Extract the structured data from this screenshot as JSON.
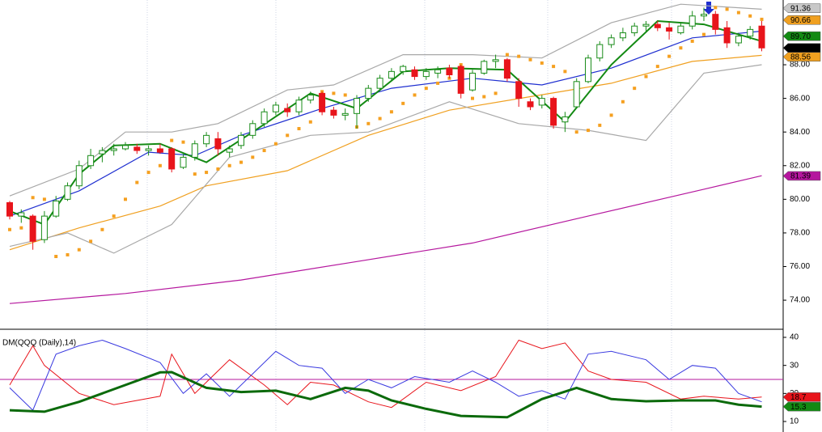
{
  "chart_data": [
    {
      "type": "candlestick",
      "open": [
        79.8,
        79.0,
        79.0,
        77.6,
        79.0,
        80.0,
        80.8,
        82.0,
        82.7,
        82.9,
        83.0,
        83.1,
        82.9,
        83.0,
        83.0,
        81.9,
        82.5,
        83.3,
        83.6,
        82.8,
        83.2,
        83.8,
        84.5,
        85.2,
        85.4,
        85.2,
        85.9,
        86.3,
        85.3,
        85.0,
        85.1,
        86.0,
        86.6,
        87.2,
        87.6,
        87.7,
        87.3,
        87.5,
        87.8,
        87.9,
        86.5,
        87.5,
        88.2,
        88.3,
        87.0,
        85.8,
        85.6,
        86.0,
        84.6,
        85.5,
        87.0,
        88.4,
        89.2,
        89.6,
        89.9,
        90.3,
        90.4,
        90.2,
        89.9,
        90.3,
        90.9,
        91.0,
        90.2,
        89.3,
        89.7,
        90.3
      ],
      "high": [
        79.9,
        79.4,
        79.1,
        79.3,
        80.2,
        81.0,
        82.3,
        83.0,
        83.1,
        83.3,
        83.4,
        83.3,
        83.2,
        83.3,
        83.1,
        82.7,
        83.5,
        84.0,
        84.0,
        83.2,
        84.0,
        84.7,
        85.4,
        85.8,
        85.7,
        86.1,
        86.4,
        86.4,
        85.5,
        85.4,
        86.2,
        86.8,
        87.4,
        87.8,
        88.0,
        87.9,
        87.8,
        87.9,
        88.0,
        88.0,
        87.7,
        88.3,
        88.6,
        88.4,
        87.2,
        86.0,
        86.2,
        86.1,
        85.2,
        87.2,
        88.6,
        89.4,
        89.8,
        90.2,
        90.5,
        90.6,
        90.6,
        90.5,
        90.5,
        91.2,
        91.4,
        91.2,
        90.6,
        89.9,
        90.3,
        90.6
      ],
      "low": [
        78.8,
        78.6,
        77.0,
        77.4,
        78.9,
        79.9,
        80.6,
        81.8,
        82.2,
        82.6,
        82.9,
        82.7,
        82.6,
        82.7,
        81.6,
        81.8,
        82.3,
        83.1,
        82.6,
        82.5,
        83.0,
        83.6,
        84.3,
        85.0,
        84.9,
        85.0,
        85.7,
        85.0,
        84.8,
        84.7,
        84.2,
        85.8,
        86.5,
        87.0,
        87.4,
        87.1,
        87.1,
        87.2,
        87.2,
        86.0,
        86.4,
        87.4,
        87.8,
        87.0,
        85.5,
        85.3,
        85.4,
        84.2,
        84.0,
        85.4,
        86.9,
        88.2,
        89.0,
        89.4,
        89.7,
        90.0,
        90.0,
        89.5,
        89.8,
        90.1,
        90.6,
        89.8,
        89.0,
        89.1,
        89.5,
        88.8
      ],
      "close": [
        79.0,
        79.2,
        77.5,
        79.0,
        79.9,
        80.8,
        82.0,
        82.6,
        82.9,
        83.0,
        83.2,
        82.9,
        83.0,
        82.8,
        81.8,
        82.5,
        83.3,
        83.8,
        83.0,
        83.0,
        83.8,
        84.5,
        85.2,
        85.6,
        85.2,
        85.9,
        86.2,
        85.2,
        85.0,
        85.1,
        86.0,
        86.6,
        87.2,
        87.6,
        87.9,
        87.3,
        87.6,
        87.7,
        87.4,
        86.3,
        87.5,
        88.2,
        88.3,
        87.2,
        86.0,
        85.5,
        86.0,
        84.4,
        84.9,
        87.0,
        88.4,
        89.2,
        89.6,
        89.9,
        90.3,
        90.4,
        90.2,
        90.0,
        90.3,
        90.9,
        91.0,
        90.1,
        89.3,
        89.7,
        90.1,
        89.0
      ],
      "sar": [
        78.2,
        78.3,
        80.1,
        80.0,
        76.6,
        76.7,
        77.0,
        77.5,
        78.2,
        79.0,
        80.0,
        81.0,
        81.6,
        82.0,
        83.5,
        83.4,
        81.5,
        81.6,
        81.8,
        82.0,
        82.2,
        82.5,
        82.9,
        83.3,
        83.8,
        84.2,
        84.6,
        86.4,
        86.3,
        86.2,
        84.3,
        84.5,
        84.8,
        85.2,
        85.7,
        86.2,
        86.6,
        86.9,
        87.2,
        88.0,
        86.0,
        86.1,
        86.3,
        88.6,
        88.5,
        88.3,
        88.1,
        87.9,
        87.6,
        84.0,
        84.1,
        84.4,
        85.0,
        85.8,
        86.6,
        87.3,
        87.9,
        88.5,
        89.0,
        89.4,
        89.8,
        91.4,
        91.3,
        91.1,
        90.9,
        90.7
      ],
      "up_color": "#1a8c1a",
      "down_color": "#e8141b",
      "sar_color": "#f5a020",
      "lines": [
        {
          "color": "#b5179e",
          "x": [
            0,
            10,
            20,
            30,
            40,
            50,
            60,
            65
          ],
          "values": [
            73.8,
            74.4,
            75.2,
            76.3,
            77.4,
            79.0,
            80.6,
            81.4
          ]
        },
        {
          "color": "#f0a020",
          "x": [
            0,
            6,
            13,
            17,
            24,
            31,
            38,
            45,
            52,
            59,
            65
          ],
          "values": [
            77.0,
            78.3,
            79.6,
            80.8,
            81.7,
            83.8,
            85.3,
            86.1,
            86.9,
            88.2,
            88.56
          ]
        },
        {
          "color": "#1f2fd0",
          "x": [
            0,
            6,
            12,
            16,
            20,
            27,
            33,
            40,
            46,
            52,
            59,
            65
          ],
          "values": [
            79.0,
            80.5,
            82.8,
            82.6,
            83.8,
            85.4,
            86.6,
            87.2,
            86.8,
            87.8,
            89.6,
            90.0
          ]
        },
        {
          "color": "#a8a8a8",
          "x": [
            0,
            6,
            10,
            14,
            18,
            24,
            28,
            34,
            40,
            46,
            52,
            58,
            65
          ],
          "values": [
            80.2,
            81.8,
            84.0,
            84.0,
            84.5,
            86.5,
            86.8,
            88.6,
            88.6,
            88.4,
            90.5,
            91.6,
            91.3
          ]
        },
        {
          "color": "#a8a8a8",
          "x": [
            0,
            5,
            9,
            14,
            19,
            26,
            31,
            38,
            44,
            50,
            55,
            60,
            65
          ],
          "values": [
            77.2,
            78.0,
            76.8,
            78.5,
            82.5,
            83.8,
            84.0,
            85.8,
            84.5,
            84.1,
            83.5,
            87.5,
            88.0
          ]
        },
        {
          "color": "#138a13",
          "x": [
            0,
            3,
            6,
            9,
            13,
            17,
            21,
            26,
            30,
            34,
            38,
            43,
            48,
            52,
            56,
            60,
            65
          ],
          "values": [
            79.3,
            78.5,
            81.5,
            83.2,
            83.3,
            82.2,
            84.0,
            86.3,
            85.4,
            87.6,
            87.8,
            87.7,
            84.6,
            88.0,
            90.6,
            90.4,
            89.4
          ]
        }
      ],
      "tags": [
        {
          "value": 91.36,
          "color": "#c8c8c8"
        },
        {
          "value": 90.66,
          "color": "#f0a020"
        },
        {
          "value": 89.7,
          "label": "89.70",
          "color": "#138a13"
        },
        {
          "value": 89,
          "label": "89.00",
          "color": "#000000"
        },
        {
          "value": 88.56,
          "color": "#f0a020"
        },
        {
          "value": 81.39,
          "color": "#b5179e"
        }
      ],
      "ylim": [
        72.32,
        91.85
      ],
      "yticks": [
        {
          "value": 74,
          "label": "74.00"
        },
        {
          "value": 76,
          "label": "76.00"
        },
        {
          "value": 78,
          "label": "78.00"
        },
        {
          "value": 80,
          "label": "80.00"
        },
        {
          "value": 82,
          "label": "82.00"
        },
        {
          "value": 84,
          "label": "84.00"
        },
        {
          "value": 86,
          "label": "86.00"
        },
        {
          "value": 88,
          "label": "88.00"
        }
      ]
    },
    {
      "type": "line",
      "title": "DM(QQQ (Daily),14)",
      "series": [
        {
          "color": "#e8141b",
          "x": [
            0,
            2,
            3,
            6,
            9,
            13,
            14,
            16,
            19,
            22,
            24,
            26,
            28,
            31,
            33,
            36,
            39,
            42,
            44,
            46,
            48,
            50,
            52,
            55,
            58,
            60,
            63,
            65
          ],
          "values": [
            23,
            37,
            30,
            20,
            16,
            19,
            34,
            20,
            32,
            23,
            16,
            24,
            23,
            17,
            15,
            24,
            21,
            26,
            39,
            36,
            38,
            28,
            25,
            24,
            18,
            19,
            18,
            18.7
          ]
        },
        {
          "color": "#3a3ae0",
          "x": [
            0,
            2,
            4,
            6,
            8,
            10,
            13,
            15,
            17,
            19,
            21,
            23,
            25,
            27,
            29,
            31,
            33,
            35,
            38,
            40,
            42,
            44,
            46,
            48,
            50,
            52,
            55,
            57,
            59,
            61,
            63,
            65
          ],
          "values": [
            22,
            14,
            34,
            37,
            39,
            36,
            31,
            20,
            27,
            19,
            27,
            35,
            30,
            29,
            20,
            25,
            22,
            26,
            24,
            28,
            24,
            19,
            21,
            18,
            34,
            35,
            32,
            25,
            30,
            29,
            20,
            17
          ]
        },
        {
          "color": "#0b6a0b",
          "x": [
            0,
            3,
            6,
            10,
            13,
            14,
            17,
            20,
            23,
            26,
            29,
            31,
            33,
            36,
            39,
            43,
            46,
            49,
            52,
            55,
            58,
            61,
            63,
            65
          ],
          "values": [
            14,
            13.5,
            17,
            23,
            27.5,
            27.6,
            22,
            20.5,
            21,
            18,
            22,
            21,
            17.5,
            14.5,
            12,
            11.5,
            18,
            22,
            18,
            17.2,
            17.5,
            17.5,
            16,
            15.3
          ]
        }
      ],
      "reference": 25,
      "reference_color": "#b5179e",
      "tags": [
        {
          "value": 18.7,
          "color": "#e8141b"
        },
        {
          "value": 15.3,
          "color": "#138a13"
        }
      ],
      "ylim": [
        6.25,
        42.6
      ],
      "yticks": [
        10,
        20,
        30,
        40
      ]
    }
  ]
}
